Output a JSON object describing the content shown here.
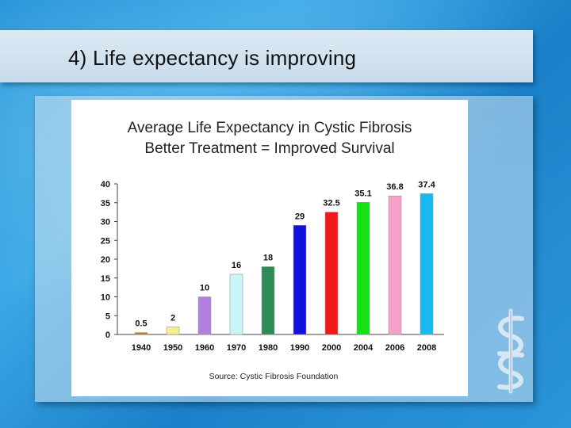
{
  "slide": {
    "title": "4) Life expectancy is improving"
  },
  "chart_data": {
    "type": "bar",
    "title": "Average Life Expectancy in Cystic Fibrosis",
    "subtitle": "Better Treatment = Improved Survival",
    "categories": [
      "1940",
      "1950",
      "1960",
      "1970",
      "1980",
      "1990",
      "2000",
      "2004",
      "2006",
      "2008"
    ],
    "values": [
      0.5,
      2,
      10,
      16,
      18,
      29,
      32.5,
      35.1,
      36.8,
      37.4
    ],
    "value_labels": [
      "0.5",
      "2",
      "10",
      "16",
      "18",
      "29",
      "32.5",
      "35.1",
      "36.8",
      "37.4"
    ],
    "colors": [
      "#c8781e",
      "#f5f08a",
      "#b07fe0",
      "#c9f5f8",
      "#2e8b57",
      "#1010e0",
      "#f01818",
      "#18e018",
      "#f5a0c8",
      "#18b8f0"
    ],
    "yticks": [
      "0",
      "5",
      "10",
      "15",
      "20",
      "25",
      "30",
      "35",
      "40"
    ],
    "ylim": [
      0,
      40
    ],
    "xlabel": "",
    "ylabel": "",
    "source": "Source: Cystic Fibrosis Foundation"
  }
}
